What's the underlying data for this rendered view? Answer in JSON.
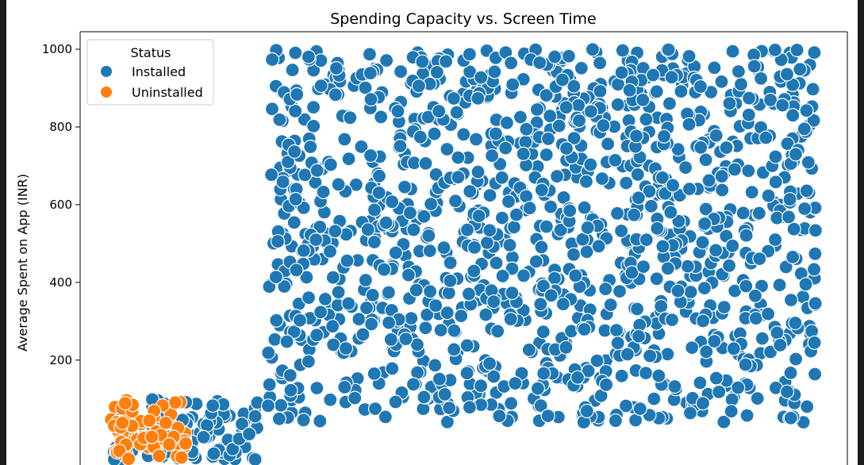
{
  "chart_data": {
    "type": "scatter",
    "title": "Spending Capacity vs. Screen Time",
    "ylabel": "Average Spent on App (INR)",
    "xlabel": "",
    "ylim": [
      -70,
      1045
    ],
    "yticks": [
      200,
      400,
      600,
      800,
      1000
    ],
    "grid": false,
    "legend": {
      "title": "Status",
      "placement": "top-left",
      "entries": [
        {
          "label": "Installed",
          "color": "#1f77b4"
        },
        {
          "label": "Uninstalled",
          "color": "#ff7f0e"
        }
      ]
    },
    "series": [
      {
        "name": "Installed",
        "color": "#1f77b4",
        "n": 1300,
        "seed": 11,
        "note": "dense cloud spanning right portion"
      },
      {
        "name": "Uninstalled",
        "color": "#ff7f0e",
        "n": 70,
        "seed": 5
      }
    ]
  }
}
